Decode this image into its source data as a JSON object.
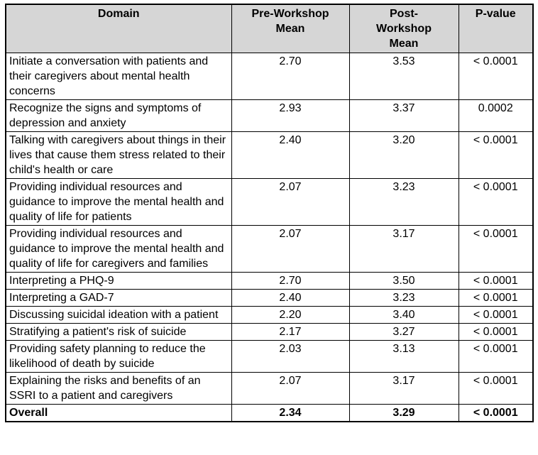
{
  "colors": {
    "header_bg": "#d6d6d6",
    "border": "#000000",
    "text": "#000000"
  },
  "table": {
    "columns": [
      {
        "label": "Domain"
      },
      {
        "label": "Pre-Workshop\nMean"
      },
      {
        "label": "Post-\nWorkshop\nMean"
      },
      {
        "label": "P-value"
      }
    ],
    "rows": [
      {
        "domain": "Initiate a conversation with patients and their caregivers about mental health concerns",
        "pre": "2.70",
        "post": "3.53",
        "p": "< 0.0001"
      },
      {
        "domain": "Recognize the signs and symptoms of depression and anxiety",
        "pre": "2.93",
        "post": "3.37",
        "p": "0.0002"
      },
      {
        "domain": "Talking with caregivers about things in their lives that cause them stress related to their child's health or care",
        "pre": "2.40",
        "post": "3.20",
        "p": "< 0.0001"
      },
      {
        "domain": "Providing individual resources and guidance to improve the mental health and quality of life for patients",
        "pre": "2.07",
        "post": "3.23",
        "p": "< 0.0001"
      },
      {
        "domain": "Providing individual resources and guidance to improve the mental health and quality of life for caregivers and families",
        "pre": "2.07",
        "post": "3.17",
        "p": "< 0.0001"
      },
      {
        "domain": "Interpreting a PHQ-9",
        "pre": "2.70",
        "post": "3.50",
        "p": "< 0.0001"
      },
      {
        "domain": "Interpreting a GAD-7",
        "pre": "2.40",
        "post": "3.23",
        "p": "< 0.0001"
      },
      {
        "domain": "Discussing suicidal ideation with a patient",
        "pre": "2.20",
        "post": "3.40",
        "p": "< 0.0001"
      },
      {
        "domain": "Stratifying a patient's risk of suicide",
        "pre": "2.17",
        "post": "3.27",
        "p": "< 0.0001"
      },
      {
        "domain": "Providing safety planning to reduce the likelihood of death by suicide",
        "pre": "2.03",
        "post": "3.13",
        "p": "< 0.0001"
      },
      {
        "domain": "Explaining the risks and benefits of an SSRI to a patient and caregivers",
        "pre": "2.07",
        "post": "3.17",
        "p": "< 0.0001"
      },
      {
        "domain": "Overall",
        "pre": "2.34",
        "post": "3.29",
        "p": "< 0.0001"
      }
    ]
  }
}
